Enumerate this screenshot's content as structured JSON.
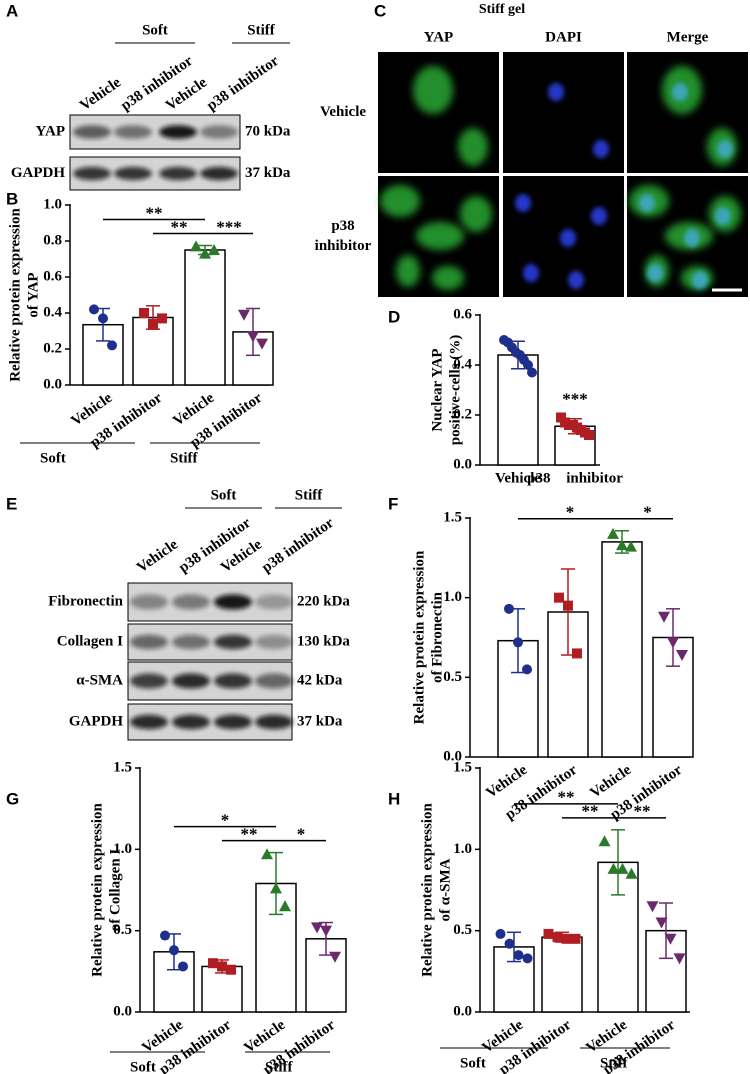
{
  "panels": [
    "A",
    "B",
    "C",
    "D",
    "E",
    "F",
    "G",
    "H"
  ],
  "blot_a": {
    "groups": [
      "Soft",
      "Stiff"
    ],
    "lanes": [
      "Vehicle",
      "p38 inhibitor",
      "Vehicle",
      "p38 inhibitor"
    ],
    "rows": [
      {
        "name": "YAP",
        "size": "70 kDa"
      },
      {
        "name": "GAPDH",
        "size": "37 kDa"
      }
    ]
  },
  "image_c": {
    "title": "Stiff gel",
    "columns": [
      "YAP",
      "DAPI",
      "Merge"
    ],
    "rows": [
      [
        "Vehicle"
      ],
      [
        "p38",
        "inhibitor"
      ]
    ]
  },
  "blot_e": {
    "groups": [
      "Soft",
      "Stiff"
    ],
    "lanes": [
      "Vehicle",
      "p38 inhibitor",
      "Vehicle",
      "p38 inhibitor"
    ],
    "rows": [
      {
        "name": "Fibronectin",
        "size": "220 kDa"
      },
      {
        "name": "Collagen I",
        "size": "130 kDa"
      },
      {
        "name": "α-SMA",
        "size": "42 kDa"
      },
      {
        "name": "GAPDH",
        "size": "37 kDa"
      }
    ]
  },
  "chart_data": [
    {
      "type": "bar",
      "ylabel": [
        "Relative protein expression",
        "of YAP"
      ],
      "categories": [
        "Vehicle",
        "p38 inhibitor",
        "Vehicle",
        "p38 inhibitor"
      ],
      "groups": [
        "Soft",
        "Stiff"
      ],
      "values": [
        0.335,
        0.375,
        0.75,
        0.295
      ],
      "errors": [
        0.09,
        0.065,
        0.025,
        0.13
      ],
      "points": [
        [
          0.42,
          0.37,
          0.22
        ],
        [
          0.4,
          0.34,
          0.37
        ],
        [
          0.77,
          0.73,
          0.75
        ],
        [
          0.39,
          0.27,
          0.23
        ]
      ],
      "colors": [
        "#1f2f8c",
        "#b01e23",
        "#2a7a2a",
        "#6a2a6a"
      ],
      "markers": [
        "circle",
        "square",
        "triangle",
        "triangle-down"
      ],
      "brackets": [
        {
          "pair": [
            0,
            2
          ],
          "label": "**"
        },
        {
          "pair": [
            1,
            2
          ],
          "label": "**"
        },
        {
          "pair": [
            2,
            3
          ],
          "label": "***"
        }
      ],
      "ylim": [
        0,
        1
      ],
      "yticks": [
        {
          "value": 0,
          "label": "0.0"
        },
        0.2,
        0.4,
        0.6,
        0.8,
        {
          "value": 1,
          "label": "1.0"
        }
      ]
    },
    {
      "type": "bar",
      "ylabel": [
        "Nuclear YAP",
        "positive-cells (%)"
      ],
      "categories": [
        "Vehicle",
        "p38 inhibitor"
      ],
      "values": [
        0.44,
        0.155
      ],
      "errors": [
        0.055,
        0.03
      ],
      "points": [
        [
          0.5,
          0.49,
          0.47,
          0.45,
          0.44,
          0.42,
          0.4,
          0.37
        ],
        [
          0.19,
          0.17,
          0.16,
          0.16,
          0.15,
          0.14,
          0.13,
          0.12
        ]
      ],
      "colors": [
        "#1f2f8c",
        "#b01e23"
      ],
      "markers": [
        "circle",
        "square"
      ],
      "brackets": [
        {
          "pair": [
            1,
            1
          ],
          "label": "***"
        }
      ],
      "ylim": [
        0,
        0.6
      ],
      "yticks": [
        {
          "value": 0,
          "label": "0.0"
        },
        0.2,
        0.4,
        0.6
      ]
    },
    {
      "type": "bar",
      "ylabel": [
        "Relative protein expression",
        "of Fibronectin"
      ],
      "categories": [
        "Vehicle",
        "p38 inhibitor",
        "Vehicle",
        "p38 inhibitor"
      ],
      "values": [
        0.73,
        0.91,
        1.35,
        0.75
      ],
      "errors": [
        0.2,
        0.27,
        0.07,
        0.18
      ],
      "points": [
        [
          0.93,
          0.72,
          0.55
        ],
        [
          1.0,
          0.95,
          0.65
        ],
        [
          1.4,
          1.33,
          1.32
        ],
        [
          0.88,
          0.72,
          0.64
        ]
      ],
      "colors": [
        "#1f2f8c",
        "#b01e23",
        "#2a7a2a",
        "#6a2a6a"
      ],
      "markers": [
        "circle",
        "square",
        "triangle",
        "triangle-down"
      ],
      "brackets": [
        {
          "pair": [
            0,
            2
          ],
          "label": "*"
        },
        {
          "pair": [
            2,
            3
          ],
          "label": "*"
        }
      ],
      "ylim": [
        0,
        1.5
      ],
      "yticks": [
        {
          "value": 0,
          "label": "0.0"
        },
        0.5,
        {
          "value": 1,
          "label": "1.0"
        },
        1.5
      ]
    },
    {
      "type": "bar",
      "ylabel": [
        "Relative protein expression",
        "of Collagen I"
      ],
      "categories": [
        "Vehicle",
        "p38 inhibitor",
        "Vehicle",
        "p38 inhibitor"
      ],
      "groups": [
        "Soft",
        "Stiff"
      ],
      "values": [
        0.37,
        0.28,
        0.79,
        0.45
      ],
      "errors": [
        0.11,
        0.04,
        0.19,
        0.1
      ],
      "points": [
        [
          0.47,
          0.38,
          0.28
        ],
        [
          0.3,
          0.28,
          0.26
        ],
        [
          0.97,
          0.76,
          0.65
        ],
        [
          0.52,
          0.5,
          0.34
        ]
      ],
      "colors": [
        "#1f2f8c",
        "#b01e23",
        "#2a7a2a",
        "#6a2a6a"
      ],
      "markers": [
        "circle",
        "square",
        "triangle",
        "triangle-down"
      ],
      "brackets": [
        {
          "pair": [
            0,
            2
          ],
          "label": "*"
        },
        {
          "pair": [
            1,
            2
          ],
          "label": "**"
        },
        {
          "pair": [
            2,
            3
          ],
          "label": "*"
        }
      ],
      "ylim": [
        0,
        1.5
      ],
      "yticks": [
        {
          "value": 0,
          "label": "0.0"
        },
        0.5,
        {
          "value": 1,
          "label": "1.0"
        },
        1.5
      ]
    },
    {
      "type": "bar",
      "ylabel": [
        "Relative protein expression",
        "of α-SMA"
      ],
      "categories": [
        "Vehicle",
        "p38 inhibitor",
        "Vehicle",
        "p38 inhibitor"
      ],
      "groups": [
        "Soft",
        "Stiff"
      ],
      "values": [
        0.4,
        0.46,
        0.92,
        0.5
      ],
      "errors": [
        0.09,
        0.03,
        0.2,
        0.17
      ],
      "points": [
        [
          0.48,
          0.42,
          0.35,
          0.33
        ],
        [
          0.48,
          0.46,
          0.45,
          0.45
        ],
        [
          1.05,
          0.88,
          0.88,
          0.85
        ],
        [
          0.65,
          0.55,
          0.45,
          0.33
        ]
      ],
      "colors": [
        "#1f2f8c",
        "#b01e23",
        "#2a7a2a",
        "#6a2a6a"
      ],
      "markers": [
        "circle",
        "square",
        "triangle",
        "triangle-down"
      ],
      "brackets": [
        {
          "pair": [
            0,
            2
          ],
          "label": "**"
        },
        {
          "pair": [
            1,
            2
          ],
          "label": "**"
        },
        {
          "pair": [
            2,
            3
          ],
          "label": "**"
        }
      ],
      "ylim": [
        0,
        1.5
      ],
      "yticks": [
        {
          "value": 0,
          "label": "0.0"
        },
        0.5,
        {
          "value": 1,
          "label": "1.0"
        },
        1.5
      ]
    }
  ]
}
